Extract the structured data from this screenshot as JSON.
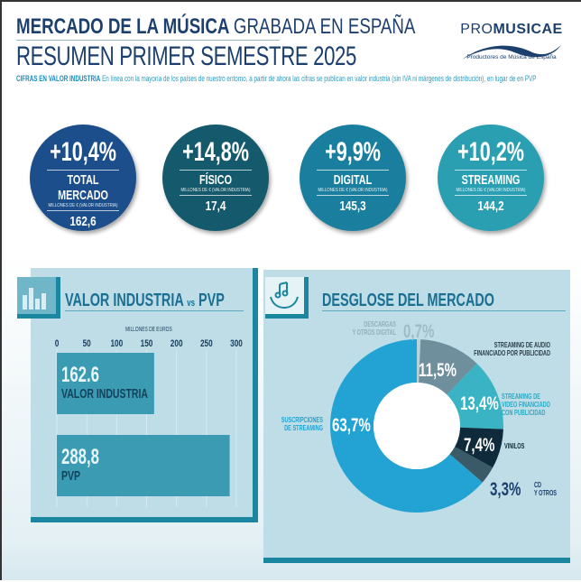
{
  "header": {
    "title_bold": "MERCADO DE LA MÚSICA",
    "title_light": "GRABADA EN ESPAÑA",
    "subtitle": "RESUMEN PRIMER SEMESTRE 2025",
    "note_bold": "CIFRAS EN  VALOR INDUSTRIA",
    "note_text": "En línea con la mayoría de los países de nuestro entorno, a partir de ahora las cifras se publican en valor industria (sin IVA ni márgenes de distribución), en lugar de en PVP"
  },
  "logo": {
    "name_light": "PRO",
    "name_bold": "MUSICAE",
    "tagline": "Productores de Música de España"
  },
  "kpis": [
    {
      "pct": "+10,4%",
      "label": "TOTAL MERCADO",
      "sub": "MILLONES DE € (VALOR INDUSTRIA)",
      "value": "162,6",
      "color": "#1b4e8a"
    },
    {
      "pct": "+14,8%",
      "label": "FÍSICO",
      "sub": "MILLONES DE € (VALOR INDUSTRIA)",
      "value": "17,4",
      "color": "#155a6c"
    },
    {
      "pct": "+9,9%",
      "label": "DIGITAL",
      "sub": "MILLONES DE € (VALOR INDUSTRIA)",
      "value": "145,3",
      "color": "#1a7f9e"
    },
    {
      "pct": "+10,2%",
      "label": "STREAMING",
      "sub": "MILLONES DE € (VALOR INDUSTRIA)",
      "value": "144,2",
      "color": "#2a9fb2"
    }
  ],
  "chart_data": [
    {
      "type": "bar",
      "title": "VALOR INDUSTRIA vs PVP",
      "title_parts": {
        "a": "VALOR INDUSTRIA",
        "vs": "vs",
        "b": "PVP"
      },
      "xlabel": "MILLONES DE EUROS",
      "xlim": [
        0,
        300
      ],
      "ticks": [
        "0",
        "50",
        "100",
        "150",
        "200",
        "250",
        "300"
      ],
      "categories": [
        "VALOR INDUSTRIA",
        "PVP"
      ],
      "values": [
        162.6,
        288.8
      ],
      "value_labels": [
        "162.6",
        "288,8"
      ],
      "grid": true
    },
    {
      "type": "pie",
      "title": "DESGLOSE DEL MERCADO",
      "slices": [
        {
          "label": "DESCARGAS Y OTROS DIGITAL",
          "value": 0.7,
          "pct": "0,7%",
          "color": "#b9d3dc"
        },
        {
          "label": "STREAMING DE AUDIO FINANCIADO POR PUBLICIDAD",
          "value": 11.5,
          "pct": "11,5%",
          "color": "#6f8f9c"
        },
        {
          "label": "STREAMING DE VIDEO FINANCIADO CON PUBLICIDAD",
          "value": 13.4,
          "pct": "13,4%",
          "color": "#3ab3c4"
        },
        {
          "label": "VINILOS",
          "value": 7.4,
          "pct": "7,4%",
          "color": "#0f2a3a"
        },
        {
          "label": "CD Y OTROS",
          "value": 3.3,
          "pct": "3,3%",
          "color": "#3b5a68"
        },
        {
          "label": "SUSCRIPCIONES DE STREAMING",
          "value": 63.7,
          "pct": "63,7%",
          "color": "#22a3d3"
        }
      ]
    }
  ]
}
